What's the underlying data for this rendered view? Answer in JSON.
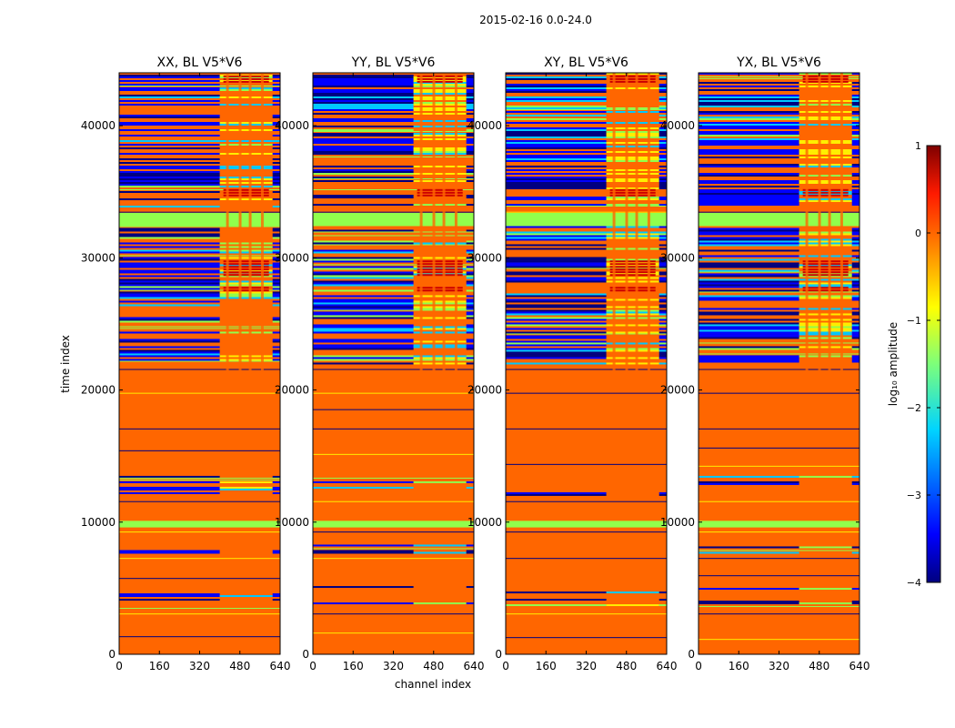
{
  "chart_data": {
    "type": "heatmap",
    "suptitle": "2015-02-16 0.0-24.0",
    "xlabel": "channel index",
    "ylabel": "time index",
    "xlim": [
      0,
      640
    ],
    "ylim": [
      0,
      44000
    ],
    "xticks": [
      "0",
      "160",
      "320",
      "480",
      "640"
    ],
    "yticks": [
      "0",
      "10000",
      "20000",
      "30000",
      "40000"
    ],
    "colorbar": {
      "label": "log₁₀ amplitude",
      "range": [
        -4,
        1
      ],
      "ticks": [
        "1",
        "0",
        "−1",
        "−2",
        "−3",
        "−4"
      ]
    },
    "panels": [
      {
        "title": "XX, BL V5*V6"
      },
      {
        "title": "YY, BL V5*V6"
      },
      {
        "title": "XY, BL V5*V6"
      },
      {
        "title": "YX, BL V5*V6"
      }
    ],
    "regions": {
      "high_channels": [
        400,
        610
      ],
      "band_full_orange": [
        [
          0,
          3500
        ],
        [
          5300,
          7700
        ],
        [
          8300,
          9700
        ],
        [
          10200,
          12000
        ],
        [
          13500,
          17500
        ],
        [
          18200,
          20200
        ],
        [
          20500,
          22000
        ],
        [
          32500,
          33900
        ]
      ],
      "band_green": [
        [
          9600,
          10100
        ],
        [
          32400,
          33400
        ]
      ],
      "band_mixed": [
        [
          3500,
          5300
        ],
        [
          7700,
          8300
        ],
        [
          12000,
          13500
        ],
        [
          22000,
          32400
        ],
        [
          33900,
          44000
        ]
      ],
      "band_red_rows": [
        [
          27400,
          27800
        ],
        [
          28600,
          29800
        ],
        [
          34700,
          35200
        ],
        [
          43200,
          43800
        ]
      ]
    }
  },
  "colors": {
    "orange": "#ff6600",
    "green": "#91ff4c",
    "blue": "#0000ff",
    "darkblue": "#000080",
    "cyan": "#00c8ff",
    "yellow": "#ffee00",
    "red": "#cc0000"
  }
}
